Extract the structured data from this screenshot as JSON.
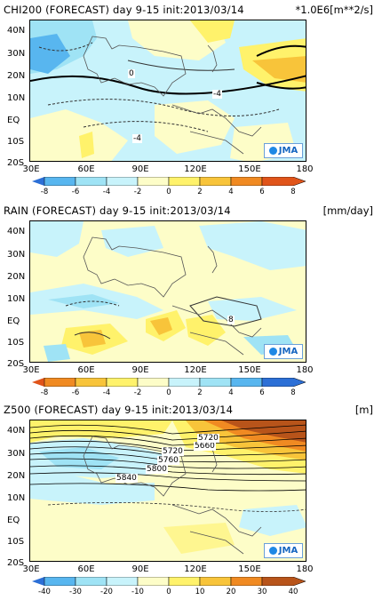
{
  "panels": [
    {
      "id": "chi200",
      "title": "CHI200 (FORECAST) day 9-15 init:2013/03/14",
      "unit": "*1.0E6[m**2/s]",
      "lat_labels": [
        "40N",
        "30N",
        "20N",
        "10N",
        "EQ",
        "10S",
        "20S"
      ],
      "lon_labels": [
        "30E",
        "60E",
        "90E",
        "120E",
        "150E",
        "180"
      ],
      "colorbar_labels": [
        "-8",
        "-6",
        "-4",
        "-2",
        "0",
        "2",
        "4",
        "6",
        "8"
      ],
      "colorbar_colors": [
        "#2c6fd6",
        "#58b6ef",
        "#9fe3f5",
        "#c8f3fb",
        "#fdfdc8",
        "#fff26b",
        "#f8c43a",
        "#f08a22",
        "#e0541a"
      ],
      "contour_labels": [
        "0",
        "-4",
        "-4"
      ],
      "logo": "JMA"
    },
    {
      "id": "rain",
      "title": "RAIN (FORECAST) day 9-15 init:2013/03/14",
      "unit": "[mm/day]",
      "lat_labels": [
        "40N",
        "30N",
        "20N",
        "10N",
        "EQ",
        "10S",
        "20S"
      ],
      "lon_labels": [
        "30E",
        "60E",
        "90E",
        "120E",
        "150E",
        "180"
      ],
      "colorbar_labels": [
        "-8",
        "-6",
        "-4",
        "-2",
        "0",
        "2",
        "4",
        "6",
        "8"
      ],
      "colorbar_colors": [
        "#e0541a",
        "#f08a22",
        "#f8c43a",
        "#fff26b",
        "#fdfdc8",
        "#c8f3fb",
        "#9fe3f5",
        "#58b6ef",
        "#2c6fd6"
      ],
      "contour_labels": [
        "8"
      ],
      "logo": "JMA"
    },
    {
      "id": "z500",
      "title": "Z500 (FORECAST) day 9-15 init:2013/03/14",
      "unit": "[m]",
      "lat_labels": [
        "40N",
        "30N",
        "20N",
        "10N",
        "EQ",
        "10S",
        "20S"
      ],
      "lon_labels": [
        "30E",
        "60E",
        "90E",
        "120E",
        "150E",
        "180"
      ],
      "colorbar_labels": [
        "-40",
        "-30",
        "-20",
        "-10",
        "0",
        "10",
        "20",
        "30",
        "40"
      ],
      "colorbar_colors": [
        "#2c6fd6",
        "#58b6ef",
        "#9fe3f5",
        "#c8f3fb",
        "#fdfdc8",
        "#fff26b",
        "#f8c43a",
        "#f08a22",
        "#b8541a"
      ],
      "contour_labels": [
        "5720",
        "5760",
        "5800",
        "5840",
        "5660",
        "5720"
      ],
      "logo": "JMA"
    }
  ]
}
